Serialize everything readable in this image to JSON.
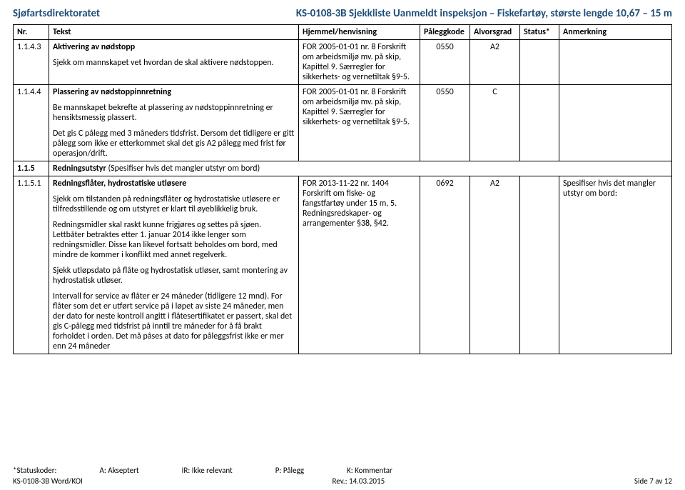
{
  "header": {
    "left": "Sjøfartsdirektoratet",
    "right": "KS-0108-3B Sjekkliste Uanmeldt inspeksjon – Fiskefartøy, største lengde 10,67 – 15 m"
  },
  "columns": {
    "nr": "Nr.",
    "tekst": "Tekst",
    "hjemmel": "Hjemmel/henvisning",
    "paleggkode": "Påleggkode",
    "alvorsgrad": "Alvorsgrad",
    "status": "Status*",
    "anmerkning": "Anmerkning"
  },
  "rows": [
    {
      "nr": "1.1.4.3",
      "title": "Aktivering av nødstopp",
      "body": [
        "Sjekk om mannskapet vet hvordan de skal aktivere nødstoppen."
      ],
      "hjemmel": "FOR 2005-01-01 nr. 8 Forskrift om arbeidsmiljø mv. på skip, Kapittel 9. Særregler for sikkerhets- og vernetiltak §9-5.",
      "paleggkode": "0550",
      "alvorsgrad": "A2",
      "status": "",
      "anmerkning": ""
    },
    {
      "nr": "1.1.4.4",
      "title": "Plassering av nødstoppinnretning",
      "body": [
        "Be mannskapet bekrefte at plassering av nødstoppinnretning er hensiktsmessig plassert.",
        "Det gis C pålegg med 3 måneders tidsfrist. Dersom det tidligere er gitt pålegg som ikke er etterkommet skal det gis A2 pålegg med frist før operasjon/drift."
      ],
      "hjemmel": "FOR 2005-01-01 nr. 8 Forskrift om arbeidsmiljø mv. på skip, Kapittel 9. Særregler for sikkerhets- og vernetiltak §9-5.",
      "paleggkode": "0550",
      "alvorsgrad": "C",
      "status": "",
      "anmerkning": ""
    },
    {
      "nr": "1.1.5",
      "section_title": "Redningsutstyr",
      "section_note": "(Spesifiser hvis det mangler utstyr om bord)"
    },
    {
      "nr": "1.1.5.1",
      "title": "Redningsflåter, hydrostatiske utløsere",
      "body": [
        "Sjekk om tilstanden på redningsflåter og hydrostatiske utløsere er tilfredsstillende og om utstyret er klart til øyeblikkelig bruk.",
        "Redningsmidler skal raskt kunne frigjøres og settes på sjøen. Lettbåter betraktes etter 1. januar 2014 ikke lenger som redningsmidler. Disse kan likevel fortsatt beholdes om bord, med mindre de kommer i konflikt med annet regelverk.",
        "Sjekk utløpsdato på flåte og hydrostatisk utløser, samt montering av hydrostatisk utløser.",
        "Intervall for service av flåter er 24 måneder (tidligere 12 mnd). For flåter som det er utført service på i løpet av siste 24 måneder, men der dato for neste kontroll angitt i flåtesertifikatet er passert, skal det gis C-pålegg med tidsfrist på inntil tre måneder for å få brakt forholdet i orden. Det må påses at dato for påleggsfrist ikke er mer enn 24 måneder"
      ],
      "hjemmel": "FOR 2013-11-22 nr. 1404 Forskrift om fiske- og fangstfartøy under 15 m, 5. Redningsredskaper- og arrangementer §38, §42.",
      "paleggkode": "0692",
      "alvorsgrad": "A2",
      "status": "",
      "anmerkning": "Spesifiser hvis det mangler utstyr om bord:"
    }
  ],
  "footer": {
    "statusline_prefix": "*Statuskoder:",
    "a": "A: Akseptert",
    "ir": "IR: Ikke relevant",
    "p": "P: Pålegg",
    "k": "K: Kommentar",
    "doc": "KS-0108-3B Word/KOI",
    "rev": "Rev.: 14.03.2015",
    "page": "Side 7 av 12"
  },
  "style": {
    "header_color": "#1f4e79",
    "border_color": "#000000",
    "font_family": "Calibri",
    "body_fontsize": 12,
    "header_fontsize": 15
  }
}
